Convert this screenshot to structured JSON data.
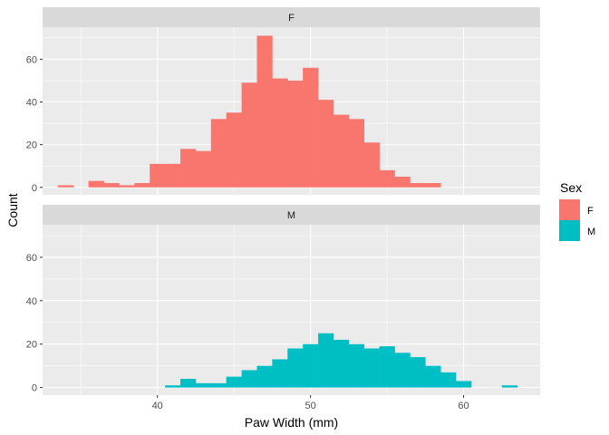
{
  "chart_data": {
    "type": "histogram",
    "xlabel": "Paw Width (mm)",
    "ylabel": "Count",
    "xlim": [
      32.5,
      65
    ],
    "ylim": [
      -3.5,
      75
    ],
    "x_ticks": [
      40,
      50,
      60
    ],
    "y_ticks": [
      0,
      20,
      40,
      60
    ],
    "grid": true,
    "legend": {
      "title": "Sex",
      "position": "right",
      "entries": [
        {
          "label": "F",
          "color": "#F8766D"
        },
        {
          "label": "M",
          "color": "#00BFC4"
        }
      ]
    },
    "bin_width": 1.0,
    "bin_start": 33.5,
    "panels": [
      {
        "strip": "F",
        "series": "F",
        "color": "#F8766D",
        "counts": [
          1,
          0,
          3,
          2,
          1,
          2,
          11,
          11,
          18,
          17,
          32,
          35,
          49,
          71,
          51,
          50,
          56,
          41,
          34,
          32,
          21,
          8,
          5,
          2,
          2
        ]
      },
      {
        "strip": "M",
        "series": "M",
        "color": "#00BFC4",
        "counts": [
          0,
          0,
          0,
          0,
          0,
          0,
          0,
          1,
          4,
          2,
          2,
          5,
          8,
          10,
          13,
          18,
          20,
          25,
          22,
          20,
          18,
          19,
          16,
          14,
          10,
          7,
          3,
          0,
          0,
          1
        ]
      }
    ]
  }
}
